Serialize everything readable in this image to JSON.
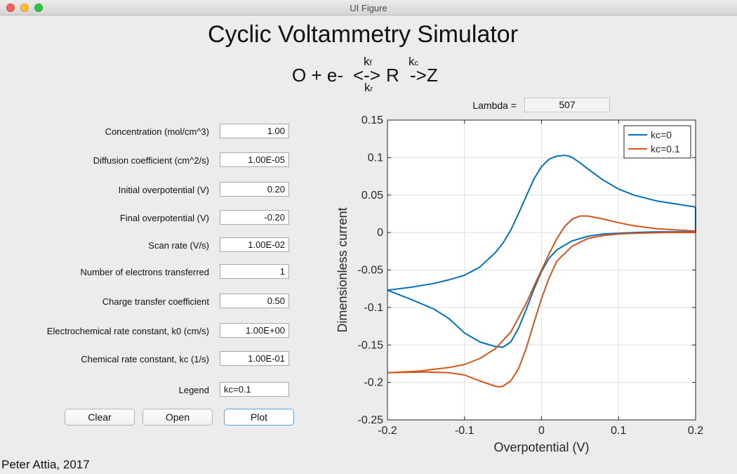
{
  "window": {
    "title": "UI Figure"
  },
  "app": {
    "title": "Cyclic Voltammetry Simulator",
    "reaction": {
      "part1": "O + e- ",
      "arrow1": "<->",
      "kf_base": "k",
      "kf_sub": "f",
      "kr_base": "k",
      "kr_sub": "r",
      "part2": " R ",
      "kc_base": "k",
      "kc_sub": "c",
      "arrow2": "->",
      "part3": " Z"
    },
    "lambda": {
      "label": "Lambda =",
      "value": "507"
    },
    "params": [
      {
        "label": "Concentration (mol/cm^3)",
        "value": "1.00"
      },
      {
        "label": "Diffusion coefficient (cm^2/s)",
        "value": "1.00E-05"
      },
      {
        "label": "Initial overpotential (V)",
        "value": "0.20"
      },
      {
        "label": "Final overpotential (V)",
        "value": "-0.20"
      },
      {
        "label": "Scan rate (V/s)",
        "value": "1.00E-02"
      },
      {
        "label": "Number of electrons transferred",
        "value": "1"
      },
      {
        "label": "Charge transfer coefficient",
        "value": "0.50"
      },
      {
        "label": "Electrochemical rate constant, k0 (cm/s)",
        "value": "1.00E+00"
      },
      {
        "label": "Chemical rate constant, kc (1/s)",
        "value": "1.00E-01"
      }
    ],
    "legend_field": {
      "label": "Legend",
      "value": "kc=0.1"
    },
    "buttons": {
      "clear": "Clear",
      "open": "Open",
      "plot": "Plot"
    },
    "footer": "Peter Attia, 2017"
  },
  "chart_data": {
    "type": "line",
    "xlabel": "Overpotential (V)",
    "ylabel": "Dimensionless current",
    "xlim": [
      -0.2,
      0.2
    ],
    "ylim": [
      -0.25,
      0.15
    ],
    "xticks": [
      -0.2,
      -0.1,
      0,
      0.1,
      0.2
    ],
    "xtick_labels": [
      "-0.2",
      "-0.1",
      "0",
      "0.1",
      "0.2"
    ],
    "yticks": [
      0.15,
      0.1,
      0.05,
      0,
      -0.05,
      -0.1,
      -0.15,
      -0.2,
      -0.25
    ],
    "ytick_labels": [
      "0.15",
      "0.1",
      "0.05",
      "0",
      "-0.05",
      "-0.1",
      "-0.15",
      "-0.2",
      "-0.25"
    ],
    "grid": true,
    "legend_position": "top-right",
    "series": [
      {
        "name": "kc=0",
        "color": "#0072bd",
        "x": [
          -0.2,
          -0.17,
          -0.14,
          -0.12,
          -0.1,
          -0.08,
          -0.06,
          -0.05,
          -0.04,
          -0.03,
          -0.02,
          -0.01,
          0,
          0.01,
          0.02,
          0.03,
          0.035,
          0.04,
          0.05,
          0.06,
          0.08,
          0.1,
          0.12,
          0.15,
          0.2,
          0.2,
          0.18,
          0.15,
          0.12,
          0.1,
          0.08,
          0.06,
          0.04,
          0.02,
          0.01,
          0,
          -0.01,
          -0.02,
          -0.03,
          -0.04,
          -0.05,
          -0.06,
          -0.08,
          -0.1,
          -0.12,
          -0.14,
          -0.17,
          -0.2
        ],
        "y": [
          -0.077,
          -0.073,
          -0.068,
          -0.063,
          -0.057,
          -0.046,
          -0.027,
          -0.014,
          0.003,
          0.025,
          0.048,
          0.071,
          0.088,
          0.098,
          0.102,
          0.103,
          0.102,
          0.1,
          0.093,
          0.085,
          0.07,
          0.058,
          0.05,
          0.042,
          0.034,
          0.001,
          0.001,
          0.001,
          0.0,
          -0.001,
          -0.002,
          -0.005,
          -0.011,
          -0.023,
          -0.034,
          -0.052,
          -0.076,
          -0.103,
          -0.128,
          -0.146,
          -0.153,
          -0.152,
          -0.146,
          -0.134,
          -0.115,
          -0.102,
          -0.089,
          -0.077
        ]
      },
      {
        "name": "kc=0.1",
        "color": "#d95319",
        "x": [
          -0.2,
          -0.16,
          -0.12,
          -0.1,
          -0.08,
          -0.06,
          -0.04,
          -0.02,
          -0.01,
          0,
          0.01,
          0.02,
          0.03,
          0.04,
          0.05,
          0.055,
          0.06,
          0.08,
          0.1,
          0.12,
          0.15,
          0.2,
          0.2,
          0.16,
          0.12,
          0.1,
          0.08,
          0.06,
          0.04,
          0.02,
          0.01,
          0,
          -0.01,
          -0.02,
          -0.03,
          -0.04,
          -0.05,
          -0.055,
          -0.06,
          -0.08,
          -0.1,
          -0.12,
          -0.15,
          -0.2
        ],
        "y": [
          -0.187,
          -0.185,
          -0.18,
          -0.176,
          -0.168,
          -0.155,
          -0.133,
          -0.095,
          -0.072,
          -0.05,
          -0.028,
          -0.008,
          0.008,
          0.018,
          0.022,
          0.022,
          0.022,
          0.018,
          0.013,
          0.009,
          0.005,
          0.002,
          0.0,
          0.0,
          -0.001,
          -0.002,
          -0.004,
          -0.008,
          -0.018,
          -0.038,
          -0.06,
          -0.088,
          -0.121,
          -0.155,
          -0.182,
          -0.198,
          -0.205,
          -0.206,
          -0.205,
          -0.198,
          -0.19,
          -0.187,
          -0.186,
          -0.187
        ]
      }
    ]
  }
}
